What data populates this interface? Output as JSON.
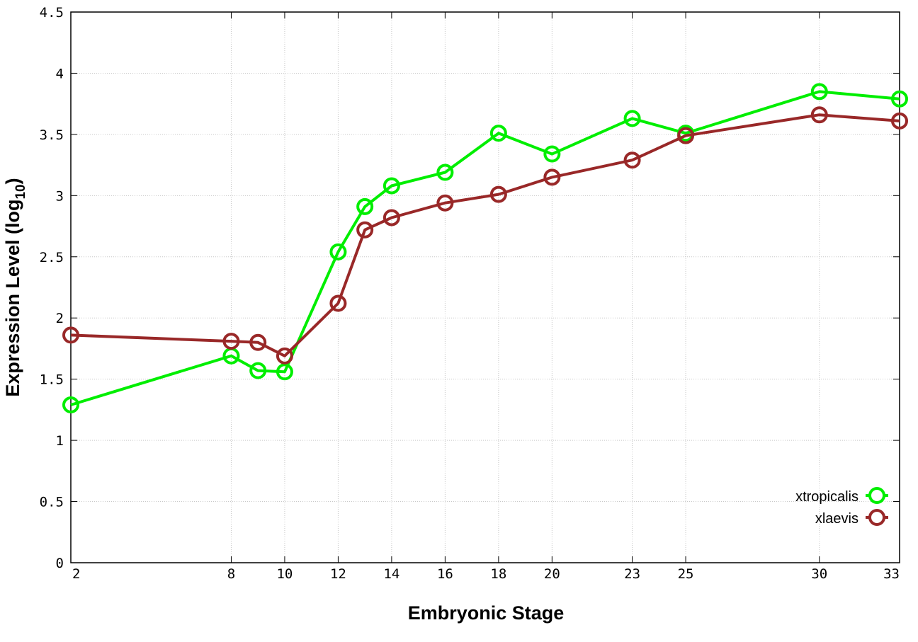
{
  "chart_data": {
    "type": "line",
    "title": "",
    "xlabel": "Embryonic Stage",
    "ylabel_main": "Expression Level (log",
    "ylabel_sub": "10",
    "ylabel_close": ")",
    "x_ticks": [
      2,
      8,
      10,
      12,
      14,
      16,
      18,
      20,
      23,
      25,
      30,
      33
    ],
    "x_tick_labels": [
      "2",
      "8",
      "10",
      "12",
      "14",
      "16",
      "18",
      "20",
      "23",
      "25",
      "30",
      "33"
    ],
    "y_ticks": [
      0,
      0.5,
      1,
      1.5,
      2,
      2.5,
      3,
      3.5,
      4,
      4.5
    ],
    "y_tick_labels": [
      "0",
      "0.5",
      "1",
      "1.5",
      "2",
      "2.5",
      "3",
      "3.5",
      "4",
      "4.5"
    ],
    "xlim": [
      2,
      33
    ],
    "ylim": [
      0,
      4.5
    ],
    "grid": true,
    "legend_position": "bottom-right",
    "x": [
      2,
      8,
      9,
      10,
      12,
      13,
      14,
      16,
      18,
      20,
      23,
      25,
      30,
      33
    ],
    "series": [
      {
        "name": "xtropicalis",
        "color": "#00ee00",
        "values": [
          1.29,
          1.69,
          1.57,
          1.56,
          2.54,
          2.91,
          3.08,
          3.19,
          3.51,
          3.34,
          3.63,
          3.51,
          3.85,
          3.79
        ]
      },
      {
        "name": "xlaevis",
        "color": "#992828",
        "values": [
          1.86,
          1.81,
          1.8,
          1.69,
          2.12,
          2.72,
          2.82,
          2.94,
          3.01,
          3.15,
          3.29,
          3.49,
          3.66,
          3.61
        ]
      }
    ]
  }
}
